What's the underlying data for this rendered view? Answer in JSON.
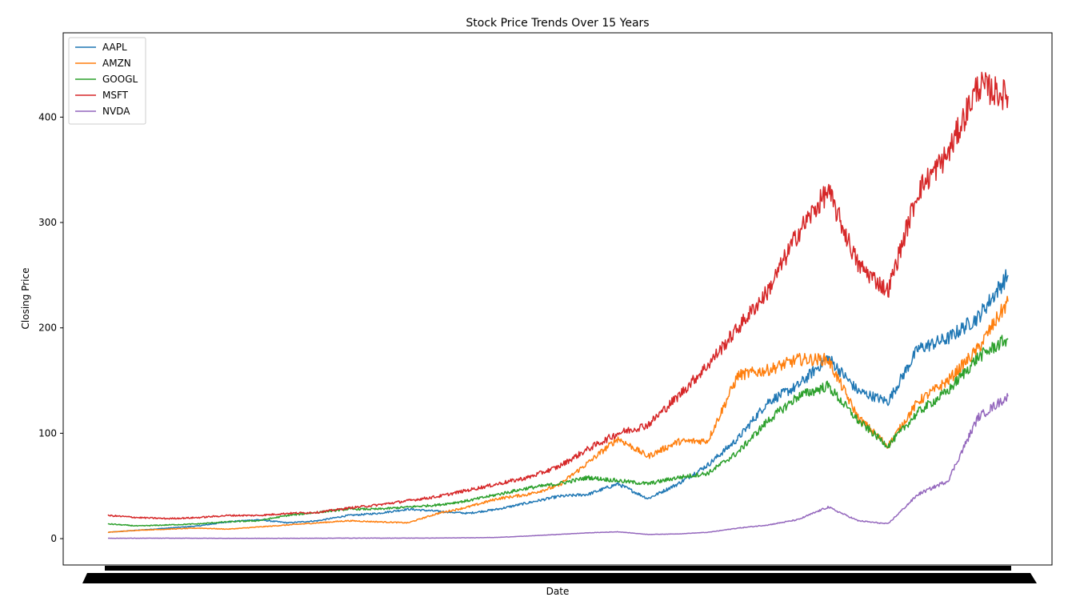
{
  "chart_data": {
    "type": "line",
    "title": "Stock Price Trends Over 15 Years",
    "xlabel": "Date",
    "ylabel": "Closing Price",
    "ylim": [
      -25,
      480
    ],
    "yticks": [
      0,
      100,
      200,
      300,
      400
    ],
    "grid": false,
    "legend_position": "top-left",
    "x_tick_labels_overlapping": true,
    "x": [
      2010.0,
      2010.5,
      2011.0,
      2011.5,
      2012.0,
      2012.5,
      2013.0,
      2013.5,
      2014.0,
      2014.5,
      2015.0,
      2015.5,
      2016.0,
      2016.5,
      2017.0,
      2017.5,
      2018.0,
      2018.5,
      2019.0,
      2019.5,
      2020.0,
      2020.5,
      2021.0,
      2021.5,
      2022.0,
      2022.5,
      2023.0,
      2023.5,
      2024.0,
      2024.5,
      2025.0
    ],
    "series": [
      {
        "name": "AAPL",
        "color": "#1f77b4",
        "values": [
          6,
          8,
          10,
          12,
          16,
          18,
          15,
          17,
          22,
          24,
          28,
          26,
          24,
          28,
          34,
          40,
          42,
          52,
          38,
          52,
          70,
          95,
          130,
          145,
          172,
          140,
          130,
          180,
          190,
          210,
          250
        ]
      },
      {
        "name": "AMZN",
        "color": "#ff7f0e",
        "values": [
          6,
          8,
          9,
          10,
          9,
          11,
          13,
          15,
          17,
          16,
          15,
          24,
          30,
          38,
          42,
          50,
          72,
          95,
          78,
          92,
          93,
          155,
          160,
          170,
          170,
          115,
          88,
          130,
          150,
          180,
          225
        ]
      },
      {
        "name": "GOOGL",
        "color": "#2ca02c",
        "values": [
          14,
          12,
          13,
          14,
          16,
          17,
          22,
          25,
          28,
          28,
          30,
          32,
          36,
          42,
          48,
          52,
          58,
          55,
          52,
          58,
          62,
          82,
          112,
          135,
          145,
          112,
          88,
          120,
          140,
          172,
          190
        ]
      },
      {
        "name": "MSFT",
        "color": "#d62728",
        "values": [
          22,
          20,
          19,
          20,
          22,
          22,
          24,
          25,
          29,
          32,
          36,
          40,
          46,
          52,
          58,
          68,
          85,
          100,
          108,
          135,
          165,
          200,
          235,
          290,
          330,
          260,
          235,
          330,
          365,
          430,
          420
        ]
      },
      {
        "name": "NVDA",
        "color": "#9467bd",
        "values": [
          0.4,
          0.4,
          0.4,
          0.4,
          0.3,
          0.3,
          0.3,
          0.4,
          0.5,
          0.5,
          0.5,
          0.6,
          0.8,
          1.2,
          2.5,
          4,
          5.5,
          6.5,
          4,
          4.5,
          6,
          10,
          13,
          18,
          30,
          17,
          14,
          42,
          55,
          115,
          135
        ]
      }
    ]
  }
}
